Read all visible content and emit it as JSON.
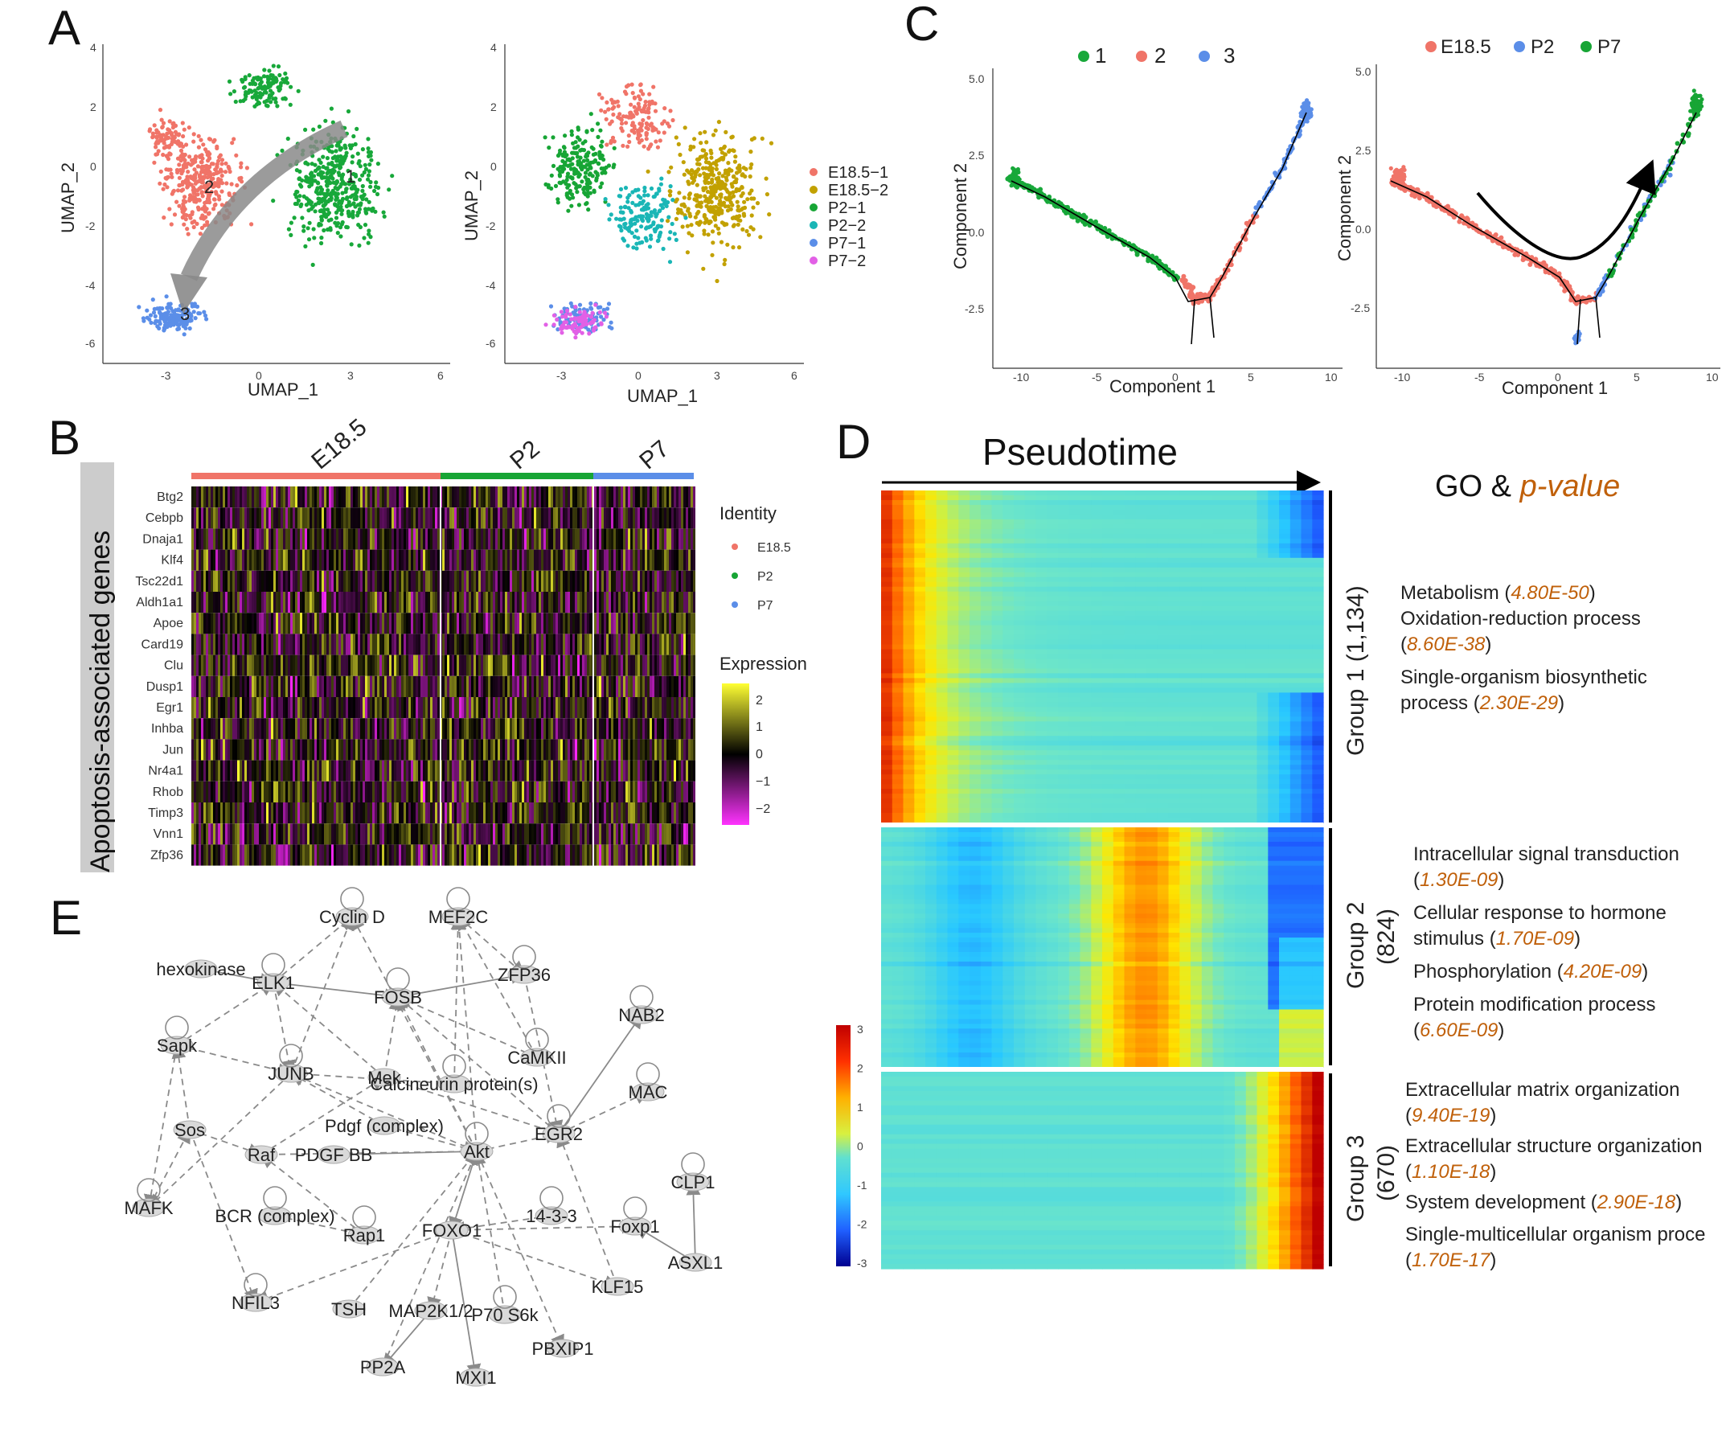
{
  "panels": {
    "A": "A",
    "B": "B",
    "C": "C",
    "D": "D",
    "E": "E"
  },
  "colors": {
    "cluster1": "#18a83a",
    "cluster2": "#f07468",
    "cluster3": "#5b8ee8",
    "E18.5-1": "#f07468",
    "E18.5-2": "#c2a100",
    "P2-1": "#17a535",
    "P2-2": "#1ab6b6",
    "P7-1": "#5b8ee8",
    "P7-2": "#e260e6",
    "heat_low": "#ff33ff",
    "heat_mid": "#000000",
    "heat_high": "#ffff33"
  },
  "panelA": {
    "xlabel": "UMAP_1",
    "ylabel": "UMAP_2",
    "xticks": [
      "-3",
      "0",
      "3",
      "6"
    ],
    "yticks": [
      "4",
      "2",
      "0",
      "-2",
      "-4",
      "-6"
    ],
    "cluster_labels": [
      "1",
      "2",
      "3"
    ],
    "legend": [
      "E18.5−1",
      "E18.5−2",
      "P2−1",
      "P2−2",
      "P7−1",
      "P7−2"
    ]
  },
  "panelB": {
    "ylabel": "Apoptosis-associated genes",
    "groups": [
      "E18.5",
      "P2",
      "P7"
    ],
    "genes": [
      "Btg2",
      "Cebpb",
      "Dnaja1",
      "Klf4",
      "Tsc22d1",
      "Aldh1a1",
      "Apoe",
      "Card19",
      "Clu",
      "Dusp1",
      "Egr1",
      "Inhba",
      "Jun",
      "Nr4a1",
      "Rhob",
      "Timp3",
      "Vnn1",
      "Zfp36"
    ],
    "identity_title": "Identity",
    "identity": [
      "E18.5",
      "P2",
      "P7"
    ],
    "expression_title": "Expression",
    "expression_ticks": [
      "2",
      "1",
      "0",
      "−1",
      "−2"
    ]
  },
  "panelC": {
    "left_legend": [
      "1",
      "2",
      "3"
    ],
    "right_legend": [
      "E18.5",
      "P2",
      "P7"
    ],
    "xlabel": "Component 1",
    "ylabel": "Component 2",
    "xticks": [
      "-10",
      "-5",
      "0",
      "5",
      "10"
    ],
    "yticks_left": [
      "5.0",
      "2.5",
      "0.0",
      "-2.5"
    ],
    "yticks_right": [
      "5.0",
      "2.5",
      "0.0",
      "-2.5"
    ]
  },
  "panelD": {
    "title": "Pseudotime",
    "go_title": "GO &",
    "go_title_pv": "p-value",
    "colorbar_ticks": [
      "3",
      "2",
      "1",
      "0",
      "-1",
      "-2",
      "-3"
    ],
    "groups": [
      {
        "label": "Group 1 (1,134)",
        "lines": [
          [
            "Metabolism (",
            "4.80E-50",
            ")"
          ],
          [
            "Oxidation-reduction process",
            "",
            ""
          ],
          [
            "(",
            "8.60E-38",
            ")"
          ],
          [
            "Single-organism biosynthetic",
            "",
            ""
          ],
          [
            "process (",
            "2.30E-29",
            ")"
          ]
        ]
      },
      {
        "label": "Group 2",
        "count": "(824)",
        "lines": [
          [
            "Intracellular signal transduction",
            "",
            ""
          ],
          [
            "(",
            "1.30E-09",
            ")"
          ],
          [
            "Cellular response to hormone",
            "",
            ""
          ],
          [
            "stimulus (",
            "1.70E-09",
            ")"
          ],
          [
            "Phosphorylation (",
            "4.20E-09",
            ")"
          ],
          [
            "Protein modification process",
            "",
            ""
          ],
          [
            "(",
            "6.60E-09",
            ")"
          ]
        ]
      },
      {
        "label": "Group 3",
        "count": "(670)",
        "lines": [
          [
            "Extracellular matrix organization",
            "",
            ""
          ],
          [
            "(",
            "9.40E-19",
            ")"
          ],
          [
            "Extracellular structure organization",
            "",
            ""
          ],
          [
            "(",
            "1.10E-18",
            ")"
          ],
          [
            "System development (",
            "2.90E-18",
            ")"
          ],
          [
            "Single-multicellular organism proce",
            "",
            ""
          ],
          [
            "(",
            "1.70E-17",
            ")"
          ]
        ]
      }
    ]
  },
  "panelE": {
    "nodes": [
      "Cyclin D",
      "MEF2C",
      "hexokinase",
      "ELK1",
      "FOSB",
      "ZFP36",
      "NAB2",
      "Sapk",
      "CaMKII",
      "JUNB",
      "Mek",
      "Calcineurin protein(s)",
      "MAC",
      "Pdgf (complex)",
      "Sos",
      "Raf",
      "PDGF BB",
      "Akt",
      "EGR2",
      "CLP1",
      "MAFK",
      "BCR (complex)",
      "Rap1",
      "FOXO1",
      "14-3-3",
      "Foxp1",
      "ASXL1",
      "NFIL3",
      "TSH",
      "MAP2K1/2",
      "P70 S6k",
      "KLF15",
      "PBXIP1",
      "PP2A",
      "MXI1"
    ]
  }
}
